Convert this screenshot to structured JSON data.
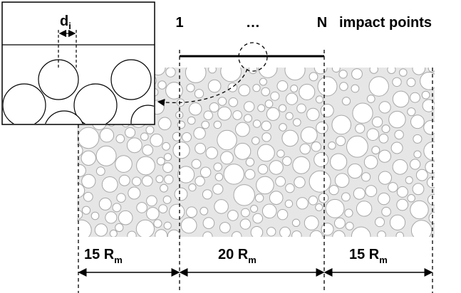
{
  "inset": {
    "width_label": "d",
    "width_sub": "i"
  },
  "top_labels": {
    "first": "1",
    "dots": "…",
    "last": "N",
    "caption": "impact points"
  },
  "dimensions": [
    {
      "label": "15 R",
      "sub": "m"
    },
    {
      "label": "20 R",
      "sub": "m"
    },
    {
      "label": "15 R",
      "sub": "m"
    }
  ]
}
